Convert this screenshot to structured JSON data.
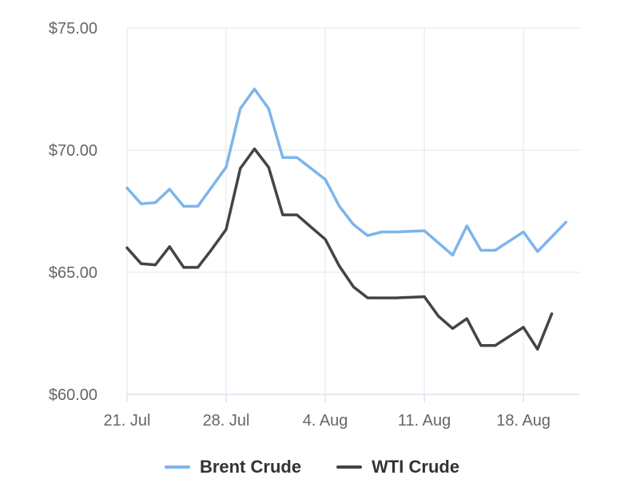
{
  "chart_data": {
    "type": "line",
    "title": "",
    "xlabel": "",
    "ylabel": "",
    "ylim": [
      60,
      75
    ],
    "y_ticks": [
      60,
      65,
      70,
      75
    ],
    "y_tick_labels": [
      "$60.00",
      "$65.00",
      "$70.00",
      "$75.00"
    ],
    "x_domain": [
      "2021-07-21",
      "2021-08-22"
    ],
    "x_ticks": [
      "2021-07-21",
      "2021-07-28",
      "2021-08-04",
      "2021-08-11",
      "2021-08-18"
    ],
    "x_tick_labels": [
      "21. Jul",
      "28. Jul",
      "4. Aug",
      "11. Aug",
      "18. Aug"
    ],
    "grid": true,
    "legend_position": "bottom-center",
    "series": [
      {
        "name": "Brent Crude",
        "color": "#7cb5ec",
        "points": [
          [
            "2021-07-21",
            68.45
          ],
          [
            "2021-07-22",
            67.8
          ],
          [
            "2021-07-23",
            67.85
          ],
          [
            "2021-07-24",
            68.4
          ],
          [
            "2021-07-25",
            67.7
          ],
          [
            "2021-07-26",
            67.7
          ],
          [
            "2021-07-27",
            68.5
          ],
          [
            "2021-07-28",
            69.3
          ],
          [
            "2021-07-29",
            71.7
          ],
          [
            "2021-07-30",
            72.5
          ],
          [
            "2021-07-31",
            71.7
          ],
          [
            "2021-08-01",
            69.7
          ],
          [
            "2021-08-02",
            69.7
          ],
          [
            "2021-08-03",
            69.25
          ],
          [
            "2021-08-04",
            68.8
          ],
          [
            "2021-08-05",
            67.7
          ],
          [
            "2021-08-06",
            66.95
          ],
          [
            "2021-08-07",
            66.5
          ],
          [
            "2021-08-08",
            66.65
          ],
          [
            "2021-08-09",
            66.65
          ],
          [
            "2021-08-11",
            66.7
          ],
          [
            "2021-08-13",
            65.7
          ],
          [
            "2021-08-14",
            66.9
          ],
          [
            "2021-08-15",
            65.9
          ],
          [
            "2021-08-16",
            65.9
          ],
          [
            "2021-08-18",
            66.65
          ],
          [
            "2021-08-19",
            65.85
          ],
          [
            "2021-08-21",
            67.05
          ]
        ]
      },
      {
        "name": "WTI Crude",
        "color": "#434348",
        "points": [
          [
            "2021-07-21",
            66.0
          ],
          [
            "2021-07-22",
            65.35
          ],
          [
            "2021-07-23",
            65.3
          ],
          [
            "2021-07-24",
            66.05
          ],
          [
            "2021-07-25",
            65.2
          ],
          [
            "2021-07-26",
            65.2
          ],
          [
            "2021-07-27",
            65.95
          ],
          [
            "2021-07-28",
            66.75
          ],
          [
            "2021-07-29",
            69.25
          ],
          [
            "2021-07-30",
            70.05
          ],
          [
            "2021-07-31",
            69.3
          ],
          [
            "2021-08-01",
            67.35
          ],
          [
            "2021-08-02",
            67.35
          ],
          [
            "2021-08-03",
            66.85
          ],
          [
            "2021-08-04",
            66.35
          ],
          [
            "2021-08-05",
            65.25
          ],
          [
            "2021-08-06",
            64.4
          ],
          [
            "2021-08-07",
            63.95
          ],
          [
            "2021-08-08",
            63.95
          ],
          [
            "2021-08-09",
            63.95
          ],
          [
            "2021-08-11",
            64.0
          ],
          [
            "2021-08-12",
            63.2
          ],
          [
            "2021-08-13",
            62.7
          ],
          [
            "2021-08-14",
            63.1
          ],
          [
            "2021-08-15",
            62.0
          ],
          [
            "2021-08-16",
            62.0
          ],
          [
            "2021-08-18",
            62.75
          ],
          [
            "2021-08-19",
            61.85
          ],
          [
            "2021-08-20",
            63.3
          ]
        ]
      }
    ]
  }
}
